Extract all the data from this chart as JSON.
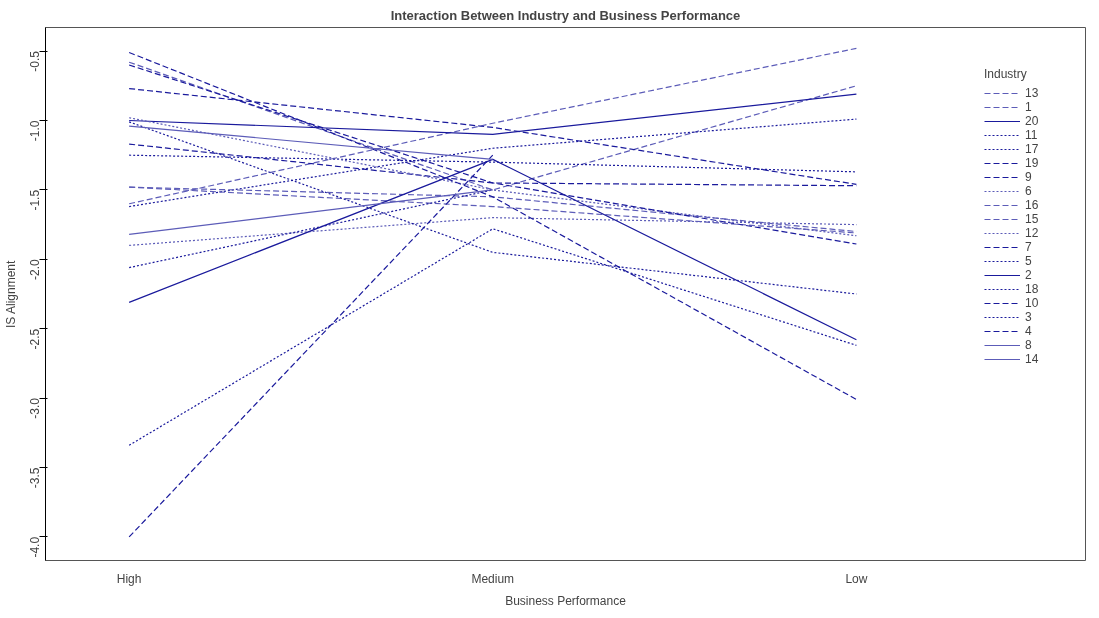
{
  "chart_data": {
    "type": "line",
    "title": "Interaction Between Industry and Business Performance",
    "xlabel": "Business Performance",
    "ylabel": "IS Alignment",
    "legend_title": "Industry",
    "categories": [
      "High",
      "Medium",
      "Low"
    ],
    "ylim": [
      -4.17,
      -0.33
    ],
    "yticks": [
      -0.5,
      {
        "value": -1,
        "label": "-1.0"
      },
      -1.5,
      {
        "value": -2,
        "label": "-2.0"
      },
      -2.5,
      {
        "value": -3,
        "label": "-3.0"
      },
      -3.5,
      {
        "value": -4,
        "label": "-4.0"
      }
    ],
    "grid": false,
    "legend": "right",
    "marker": "none",
    "series": [
      {
        "name": "13",
        "color": "#5c5cb8",
        "line_style": "dashed",
        "values": [
          -1.6,
          -1.02,
          -0.48
        ]
      },
      {
        "name": "1",
        "color": "#5c5cb8",
        "line_style": "dashed",
        "values": [
          -0.58,
          -1.5,
          -0.75
        ]
      },
      {
        "name": "20",
        "color": "#1a1a9c",
        "line_style": "solid",
        "values": [
          -1.0,
          -1.1,
          -0.81
        ]
      },
      {
        "name": "11",
        "color": "#1a1a9c",
        "line_style": "dotted",
        "values": [
          -1.62,
          -1.2,
          -0.99
        ]
      },
      {
        "name": "17",
        "color": "#1a1a9c",
        "line_style": "dotted",
        "values": [
          -1.25,
          -1.3,
          -1.37
        ]
      },
      {
        "name": "19",
        "color": "#1a1a9c",
        "line_style": "dashed",
        "values": [
          -0.77,
          -1.05,
          -1.46
        ]
      },
      {
        "name": "9",
        "color": "#1a1a9c",
        "line_style": "dashed",
        "values": [
          -1.17,
          -1.45,
          -1.47
        ]
      },
      {
        "name": "6",
        "color": "#5c5cb8",
        "line_style": "dotted",
        "values": [
          -1.9,
          -1.7,
          -1.75
        ]
      },
      {
        "name": "16",
        "color": "#5c5cb8",
        "line_style": "dashed",
        "values": [
          -1.48,
          -1.55,
          -1.8
        ]
      },
      {
        "name": "15",
        "color": "#5c5cb8",
        "line_style": "dashed",
        "values": [
          -1.48,
          -1.62,
          -1.81
        ]
      },
      {
        "name": "12",
        "color": "#5c5cb8",
        "line_style": "dotted",
        "values": [
          -0.98,
          -1.5,
          -1.83
        ]
      },
      {
        "name": "7",
        "color": "#1a1a9c",
        "line_style": "dashed",
        "values": [
          -0.6,
          -1.45,
          -1.89
        ]
      },
      {
        "name": "5",
        "color": "#1a1a9c",
        "line_style": "dotted",
        "values": [
          -1.01,
          -1.95,
          -2.25
        ]
      },
      {
        "name": "2",
        "color": "#1a1a9c",
        "line_style": "solid",
        "values": [
          -2.31,
          -1.28,
          -2.58
        ]
      },
      {
        "name": "18",
        "color": "#1a1a9c",
        "line_style": "dotted",
        "values": [
          -3.34,
          -1.78,
          -2.62
        ]
      },
      {
        "name": "10",
        "color": "#1a1a9c",
        "line_style": "dashed",
        "values": [
          -0.51,
          -1.55,
          -3.01
        ]
      },
      {
        "name": "3",
        "color": "#1a1a9c",
        "line_style": "dotted",
        "values": [
          -2.06,
          -1.5,
          null
        ]
      },
      {
        "name": "4",
        "color": "#1a1a9c",
        "line_style": "dashed",
        "values": [
          -4.0,
          -1.25,
          null
        ]
      },
      {
        "name": "8",
        "color": "#5c5cb8",
        "line_style": "solid",
        "values": [
          -1.04,
          -1.28,
          null
        ]
      },
      {
        "name": "14",
        "color": "#5c5cb8",
        "line_style": "solid",
        "values": [
          -1.82,
          -1.5,
          null
        ]
      }
    ]
  }
}
